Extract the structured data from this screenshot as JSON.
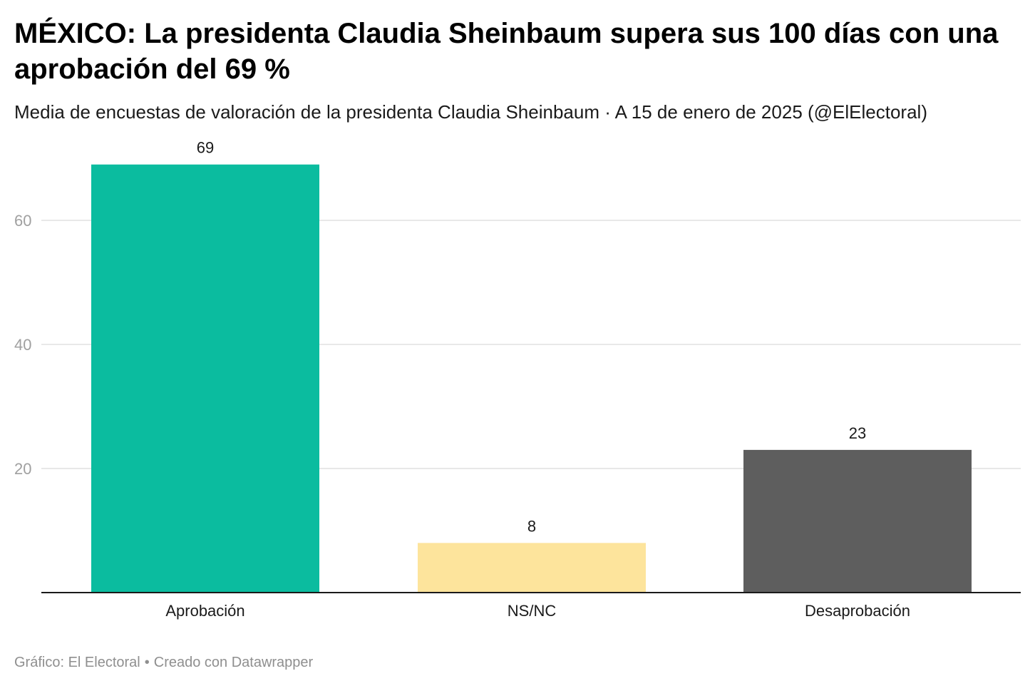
{
  "title": "MÉXICO: La presidenta Claudia Sheinbaum supera sus 100 días con una aprobación del 69 %",
  "subtitle": "Media de encuestas de valoración de la presidenta Claudia Sheinbaum · A 15 de enero de 2025 (@ElElectoral)",
  "footer": {
    "source": "Gráfico: El Electoral",
    "separator": "•",
    "credit": "Creado con Datawrapper"
  },
  "chart_data": {
    "type": "bar",
    "categories": [
      "Aprobación",
      "NS/NC",
      "Desaprobación"
    ],
    "values": [
      69,
      8,
      23
    ],
    "colors": [
      "#0bbc9f",
      "#fde49c",
      "#5e5e5e"
    ],
    "yticks": [
      20,
      40,
      60
    ],
    "ylim": [
      0,
      72
    ],
    "grid": true,
    "data_labels": true
  }
}
